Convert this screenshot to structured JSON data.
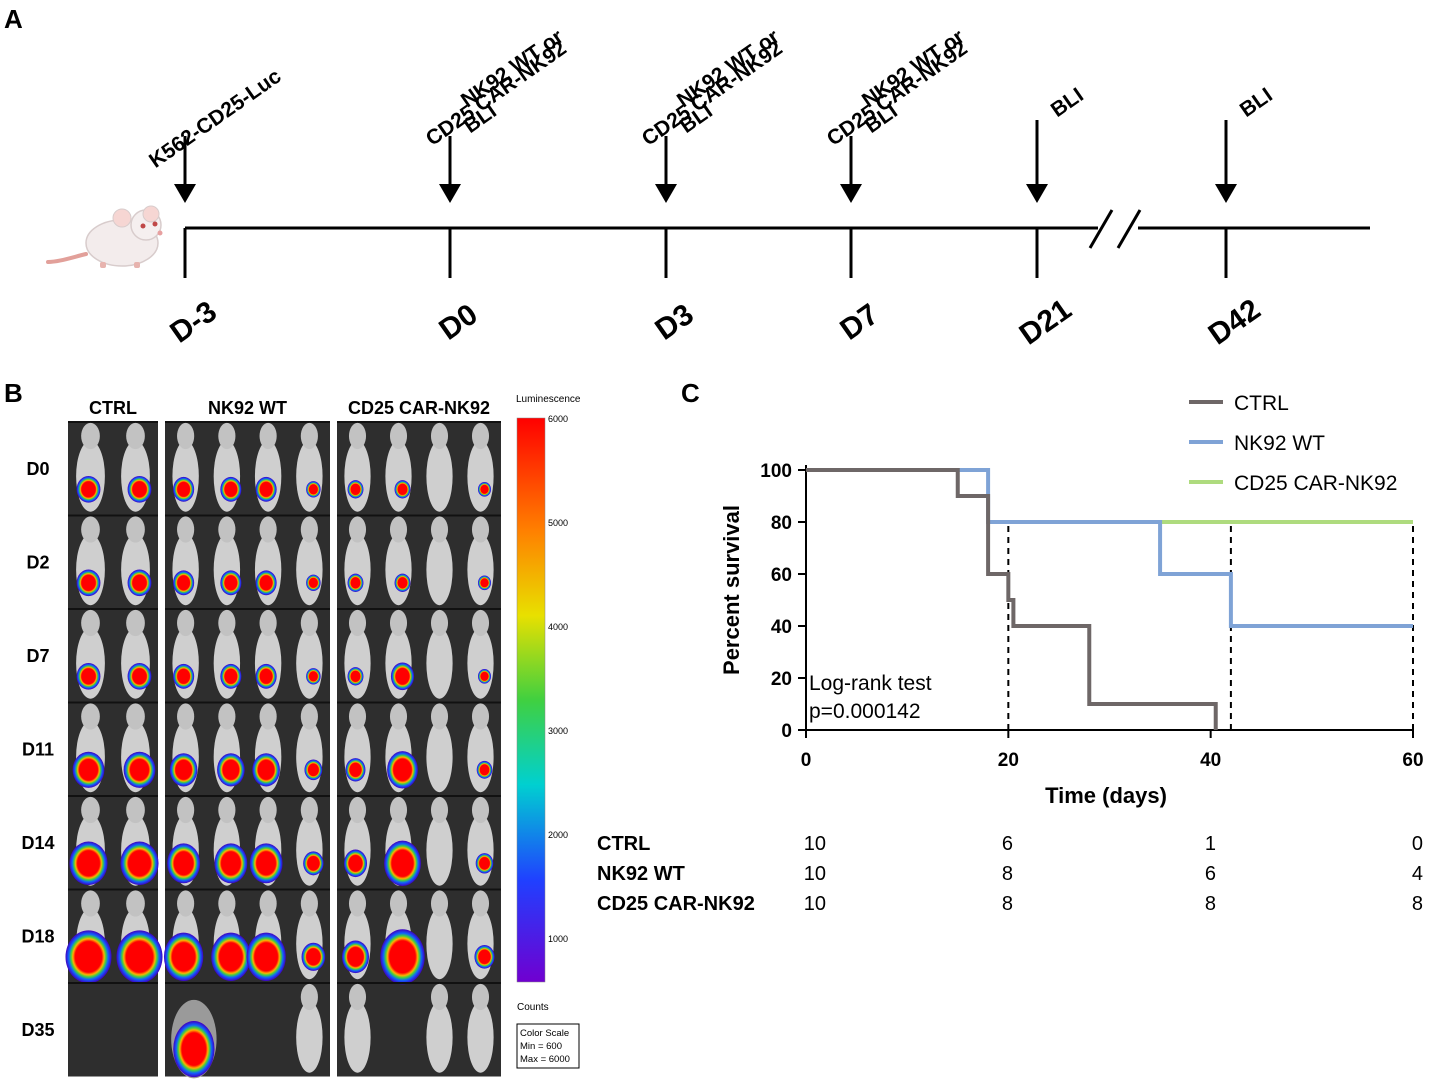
{
  "panel_a": {
    "letter": "A",
    "events": [
      {
        "day": "D-3",
        "lines": [
          "K562-CD25-Luc"
        ]
      },
      {
        "day": "D0",
        "lines": [
          "NK92 WT or",
          "CD25 CAR-NK92",
          "BLI"
        ]
      },
      {
        "day": "D3",
        "lines": [
          "NK92 WT or",
          "CD25 CAR-NK92",
          "BLI"
        ]
      },
      {
        "day": "D7",
        "lines": [
          "NK92 WT or",
          "CD25 CAR-NK92",
          "BLI"
        ]
      },
      {
        "day": "D21",
        "lines": [
          "BLI"
        ]
      },
      {
        "day": "D42",
        "lines": [
          "BLI"
        ]
      }
    ]
  },
  "panel_b": {
    "letter": "B",
    "groups": [
      {
        "name": "CTRL",
        "mice": 2
      },
      {
        "name": "NK92 WT",
        "mice": 4
      },
      {
        "name": "CD25 CAR-NK92",
        "mice": 4
      }
    ],
    "rows": [
      "D0",
      "D2",
      "D7",
      "D11",
      "D14",
      "D18",
      "D35"
    ],
    "colorbar": {
      "title": "Luminescence",
      "ticks": [
        "6000",
        "5000",
        "4000",
        "3000",
        "2000",
        "1000"
      ],
      "unit": "Counts",
      "box_lines": [
        "Color Scale",
        "Min = 600",
        "Max = 6000"
      ]
    }
  },
  "panel_c": {
    "letter": "C",
    "risk_table": {
      "rows": [
        {
          "label": "CTRL",
          "values": [
            "10",
            "6",
            "1",
            "0"
          ]
        },
        {
          "label": "NK92 WT",
          "values": [
            "10",
            "8",
            "6",
            "4"
          ]
        },
        {
          "label": "CD25 CAR-NK92",
          "values": [
            "10",
            "8",
            "8",
            "8"
          ]
        }
      ]
    }
  },
  "chart_data": {
    "type": "line",
    "title": "",
    "xlabel": "Time (days)",
    "ylabel": "Percent survival",
    "xlim": [
      0,
      60
    ],
    "ylim": [
      0,
      100
    ],
    "xticks": [
      0,
      20,
      40,
      60
    ],
    "yticks": [
      0,
      20,
      40,
      60,
      80,
      100
    ],
    "step": true,
    "series": [
      {
        "name": "CTRL",
        "color": "#6e6767",
        "x": [
          0,
          15,
          15,
          18,
          18,
          20,
          20,
          20.5,
          20.5,
          21,
          21,
          28,
          28,
          40.5,
          40.5
        ],
        "y": [
          100,
          100,
          90,
          90,
          60,
          60,
          50,
          50,
          40,
          40,
          40,
          40,
          10,
          10,
          0
        ]
      },
      {
        "name": "NK92  WT",
        "color": "#7fa3d6",
        "x": [
          0,
          18,
          18,
          35,
          35,
          42,
          42,
          60
        ],
        "y": [
          100,
          100,
          80,
          80,
          60,
          60,
          40,
          40
        ]
      },
      {
        "name": "CD25 CAR-NK92",
        "color": "#aedb7e",
        "x": [
          35,
          60
        ],
        "y": [
          80,
          80
        ]
      }
    ],
    "dashed_verticals": [
      20,
      42,
      60
    ],
    "annotation": [
      "Log-rank test",
      "p=0.000142"
    ],
    "legend_position": "top-right"
  }
}
